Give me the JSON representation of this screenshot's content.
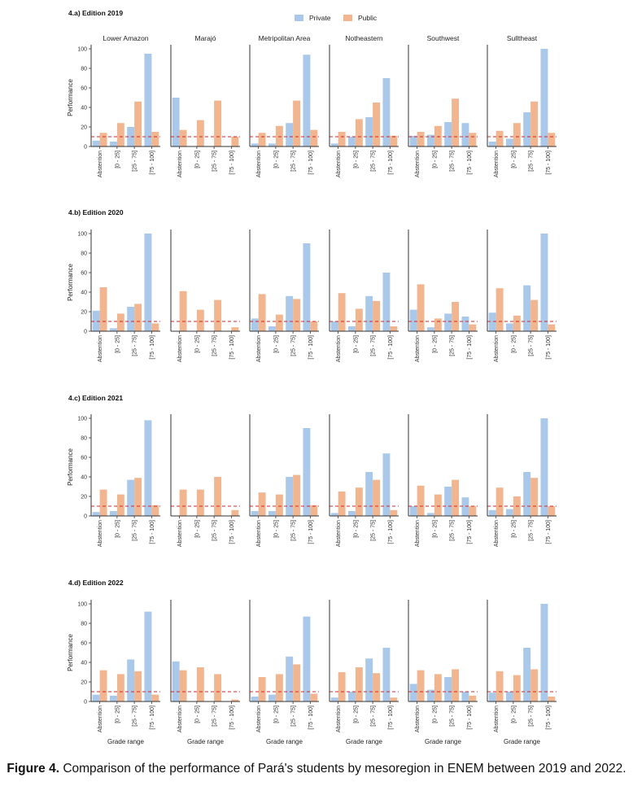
{
  "legend": {
    "items": [
      {
        "label": "Private",
        "color": "#aac9ea"
      },
      {
        "label": "Public",
        "color": "#f1b690"
      }
    ],
    "placement": "top-center"
  },
  "regions": [
    "Lower Amazon",
    "Marajó",
    "Metripolitan Area",
    "Notheastern",
    "Southwest",
    "Sulltheast"
  ],
  "caption": {
    "label": "Figure 4.",
    "text": " Comparison of the performance of Pará's students by mesoregion in ENEM between 2019 and 2022."
  },
  "chart_data": {
    "type": "bar",
    "layout": "small-multiples",
    "categories": [
      "Abstention",
      "[0 - 25]",
      "[25 - 75]",
      "[75 - 100]"
    ],
    "ylabel": "Performance",
    "xlabel": "Grade range",
    "yticks": [
      0,
      20,
      40,
      60,
      80,
      100
    ],
    "ylim": [
      0,
      100
    ],
    "reference_line": {
      "y": 10,
      "style": "dashed",
      "color": "#d62728"
    },
    "series_names": [
      "Private",
      "Public"
    ],
    "series_colors": [
      "#aac9ea",
      "#f1b690"
    ],
    "editions": [
      {
        "title": "4.a) Edition 2019",
        "panels": [
          {
            "region": "Lower Amazon",
            "private": [
              6,
              5,
              20,
              95
            ],
            "public": [
              14,
              24,
              46,
              15
            ]
          },
          {
            "region": "Marajó",
            "private": [
              50,
              0,
              0,
              0
            ],
            "public": [
              17,
              27,
              47,
              10
            ]
          },
          {
            "region": "Metripolitan Area",
            "private": [
              3,
              3,
              24,
              94
            ],
            "public": [
              14,
              21,
              47,
              17
            ]
          },
          {
            "region": "Notheastern",
            "private": [
              3,
              10,
              30,
              70
            ],
            "public": [
              15,
              28,
              45,
              11
            ]
          },
          {
            "region": "Southwest",
            "private": [
              11,
              12,
              25,
              24
            ],
            "public": [
              15,
              21,
              49,
              14
            ]
          },
          {
            "region": "Sulltheast",
            "private": [
              5,
              8,
              35,
              100
            ],
            "public": [
              16,
              24,
              46,
              14
            ]
          }
        ]
      },
      {
        "title": "4.b) Edition 2020",
        "panels": [
          {
            "region": "Lower Amazon",
            "private": [
              21,
              3,
              25,
              100
            ],
            "public": [
              45,
              18,
              28,
              8
            ]
          },
          {
            "region": "Marajó",
            "private": [
              0,
              0,
              0,
              0
            ],
            "public": [
              41,
              22,
              32,
              4
            ]
          },
          {
            "region": "Metripolitan Area",
            "private": [
              13,
              5,
              36,
              90
            ],
            "public": [
              38,
              17,
              33,
              10
            ]
          },
          {
            "region": "Notheastern",
            "private": [
              10,
              5,
              36,
              60
            ],
            "public": [
              39,
              23,
              31,
              5
            ]
          },
          {
            "region": "Southwest",
            "private": [
              22,
              4,
              18,
              15
            ],
            "public": [
              48,
              13,
              30,
              7
            ]
          },
          {
            "region": "Sulltheast",
            "private": [
              19,
              8,
              47,
              100
            ],
            "public": [
              44,
              16,
              32,
              7
            ]
          }
        ]
      },
      {
        "title": "4.c) Edition 2021",
        "panels": [
          {
            "region": "Lower Amazon",
            "private": [
              4,
              5,
              37,
              98
            ],
            "public": [
              27,
              22,
              39,
              11
            ]
          },
          {
            "region": "Marajó",
            "private": [
              0,
              0,
              0,
              0
            ],
            "public": [
              27,
              27,
              40,
              6
            ]
          },
          {
            "region": "Metripolitan Area",
            "private": [
              5,
              5,
              40,
              90
            ],
            "public": [
              24,
              22,
              42,
              11
            ]
          },
          {
            "region": "Notheastern",
            "private": [
              3,
              5,
              45,
              64
            ],
            "public": [
              25,
              29,
              37,
              6
            ]
          },
          {
            "region": "Southwest",
            "private": [
              10,
              3,
              30,
              19
            ],
            "public": [
              31,
              22,
              37,
              10
            ]
          },
          {
            "region": "Sulltheast",
            "private": [
              6,
              7,
              45,
              100
            ],
            "public": [
              29,
              20,
              39,
              10
            ]
          }
        ]
      },
      {
        "title": "4.d) Edition 2022",
        "panels": [
          {
            "region": "Lower Amazon",
            "private": [
              7,
              6,
              43,
              92
            ],
            "public": [
              32,
              28,
              31,
              7
            ]
          },
          {
            "region": "Marajó",
            "private": [
              41,
              0,
              0,
              0
            ],
            "public": [
              32,
              35,
              28,
              2
            ]
          },
          {
            "region": "Metripolitan Area",
            "private": [
              5,
              7,
              46,
              87
            ],
            "public": [
              25,
              28,
              38,
              8
            ]
          },
          {
            "region": "Notheastern",
            "private": [
              4,
              10,
              44,
              55
            ],
            "public": [
              30,
              35,
              29,
              4
            ]
          },
          {
            "region": "Southwest",
            "private": [
              18,
              12,
              25,
              10
            ],
            "public": [
              32,
              28,
              33,
              6
            ]
          },
          {
            "region": "Sulltheast",
            "private": [
              9,
              10,
              55,
              100
            ],
            "public": [
              31,
              27,
              33,
              5
            ]
          }
        ]
      }
    ]
  }
}
